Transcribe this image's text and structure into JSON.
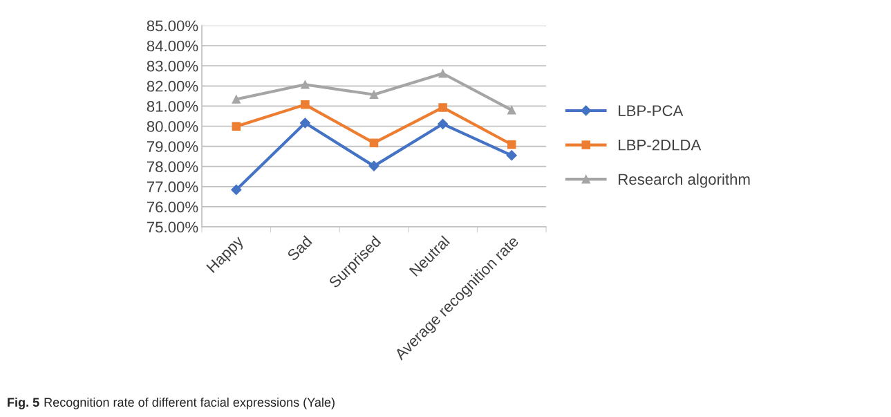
{
  "chart_data": {
    "type": "line",
    "categories": [
      "Happy",
      "Sad",
      "Surprised",
      "Neutral",
      "Average recognition rate"
    ],
    "series": [
      {
        "name": "LBP-PCA",
        "color": "#4472c4",
        "marker": "diamond",
        "values": [
          76.84,
          80.16,
          78.02,
          80.11,
          78.55
        ]
      },
      {
        "name": "LBP-2DLDA",
        "color": "#ed7d31",
        "marker": "square",
        "values": [
          79.99,
          81.07,
          79.17,
          80.93,
          79.09
        ]
      },
      {
        "name": "Research algorithm",
        "color": "#a5a5a5",
        "marker": "triangle",
        "values": [
          81.34,
          82.07,
          81.57,
          82.62,
          80.8
        ]
      }
    ],
    "ylim": [
      75,
      85
    ],
    "yticks": [
      {
        "value": 75,
        "label": "75.00%"
      },
      {
        "value": 76,
        "label": "76.00%"
      },
      {
        "value": 77,
        "label": "77.00%"
      },
      {
        "value": 78,
        "label": "78.00%"
      },
      {
        "value": 79,
        "label": "79.00%"
      },
      {
        "value": 80,
        "label": "80.00%"
      },
      {
        "value": 81,
        "label": "81.00%"
      },
      {
        "value": 82,
        "label": "82.00%"
      },
      {
        "value": 83,
        "label": "83.00%"
      },
      {
        "value": 84,
        "label": "84.00%"
      },
      {
        "value": 85,
        "label": "85.00%"
      }
    ],
    "grid": "y",
    "legend": "right",
    "line_style": "solid",
    "annotations": [
      "Fig. 5",
      "Recognition rate of different facial expressions (Yale)"
    ]
  }
}
